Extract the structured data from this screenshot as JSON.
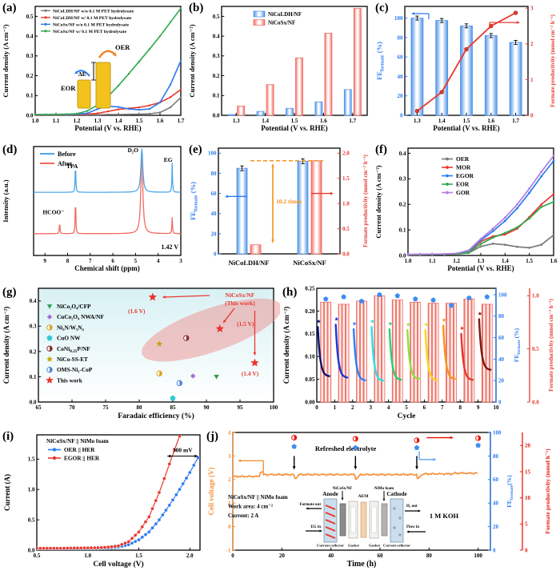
{
  "palette": {
    "blue": "#2b7bf0",
    "bar_blue": "#4f93e8",
    "bar_blue_light": "#bdd8f6",
    "red": "#e8382f",
    "bar_red": "#f26a60",
    "bar_red_light": "#fbd0cc",
    "green": "#2fa84f",
    "gray": "#7a7a7a",
    "purple": "#b07fe0",
    "orange": "#f5923e",
    "cyan": "#35c8d8",
    "black": "#000000"
  },
  "chart_data": [
    {
      "panel": "a",
      "label": "(a)",
      "type": "line",
      "xlabel": "Potential (V vs. RHE)",
      "ylabel": "Current density (A cm⁻²)",
      "xlim": [
        1.0,
        1.7
      ],
      "ylim": [
        0,
        0.55
      ],
      "xticks": [
        1.0,
        1.1,
        1.2,
        1.3,
        1.4,
        1.5,
        1.6,
        1.7
      ],
      "yticks": [
        0.0,
        0.1,
        0.2,
        0.3,
        0.4,
        0.5
      ],
      "x": [
        1.0,
        1.05,
        1.1,
        1.15,
        1.2,
        1.25,
        1.3,
        1.35,
        1.4,
        1.45,
        1.5,
        1.55,
        1.6,
        1.65,
        1.7
      ],
      "series": [
        {
          "name": "NiCoLDH/NF w/o 0.1 M PET hydrolysate",
          "color": "#7a7a7a",
          "values": [
            0.002,
            0.002,
            0.002,
            0.002,
            0.003,
            0.003,
            0.003,
            0.004,
            0.004,
            0.005,
            0.006,
            0.008,
            0.014,
            0.04,
            0.09
          ]
        },
        {
          "name": "NiCoLDH/NF w/ 0.1 M PET hydrolysate",
          "color": "#e8382f",
          "values": [
            0.003,
            0.003,
            0.003,
            0.004,
            0.005,
            0.006,
            0.01,
            0.02,
            0.03,
            0.035,
            0.04,
            0.05,
            0.065,
            0.092,
            0.13
          ]
        },
        {
          "name": "NiCoSx/NF w/o 0.1 M PET hydrolysate",
          "color": "#2b7bf0",
          "values": [
            0.004,
            0.004,
            0.004,
            0.005,
            0.006,
            0.01,
            0.032,
            0.046,
            0.042,
            0.032,
            0.028,
            0.032,
            0.065,
            0.155,
            0.275
          ]
        },
        {
          "name": "NiCoSx/NF w/ 0.1 M PET hydrolysate",
          "color": "#2fa84f",
          "values": [
            0.004,
            0.004,
            0.005,
            0.006,
            0.008,
            0.022,
            0.052,
            0.095,
            0.15,
            0.21,
            0.272,
            0.335,
            0.4,
            0.47,
            0.54
          ]
        }
      ],
      "inset": {
        "oer": "OER",
        "eor": "EOR",
        "delta": "ΔE"
      }
    },
    {
      "panel": "b",
      "label": "(b)",
      "type": "bar",
      "xlabel": "Potential (V vs. RHE)",
      "ylabel": "Current density (A cm⁻²)",
      "categories": [
        "1.3",
        "1.4",
        "1.5",
        "1.6",
        "1.7"
      ],
      "ylim": [
        0,
        0.55
      ],
      "yticks": [
        0.0,
        0.1,
        0.2,
        0.3,
        0.4,
        0.5
      ],
      "series": [
        {
          "name": "NiCoLDH/NF",
          "color": "#4f93e8",
          "values": [
            0.004,
            0.02,
            0.035,
            0.068,
            0.13
          ]
        },
        {
          "name": "NiCoSx/NF",
          "color": "#f26a60",
          "values": [
            0.047,
            0.155,
            0.29,
            0.415,
            0.54
          ]
        }
      ]
    },
    {
      "panel": "c",
      "label": "(c)",
      "type": "bar-line",
      "xlabel": "Potential (V vs. RHE)",
      "ylabel_left": "FE_{formate} (%)",
      "ylabel_right": "Formate productivity (mmol cm⁻² h⁻¹)",
      "categories": [
        "1.3",
        "1.4",
        "1.5",
        "1.6",
        "1.7"
      ],
      "fe_values": [
        100,
        97.5,
        92,
        82,
        75
      ],
      "fe_errors": [
        1.5,
        1,
        1.5,
        1,
        2
      ],
      "productivity": [
        0.12,
        0.65,
        1.85,
        2.5,
        2.87
      ],
      "ylim_left": [
        0,
        112
      ],
      "yticks_left": [
        0,
        20,
        40,
        60,
        80,
        100
      ],
      "ylim_right": [
        0,
        3.05
      ],
      "yticks_right": [
        0,
        1,
        2,
        3
      ]
    },
    {
      "panel": "d",
      "label": "(d)",
      "type": "nmr",
      "xlabel": "Chemical shift (ppm)",
      "ylabel": "Intensity (a.u.)",
      "xticks": [
        9,
        8,
        7,
        6,
        5,
        4,
        3
      ],
      "legend": [
        "Before",
        "After"
      ],
      "peak_labels": {
        "tpa": "TPA",
        "d2o": "D₂O",
        "eg": "EG",
        "formate": "HCOO⁻"
      },
      "annotation": "1.42 V",
      "before": {
        "base": 0.58,
        "peaks": [
          {
            "p": 7.65,
            "h": 0.27,
            "w": 0.016
          },
          {
            "p": 4.72,
            "h": 0.4,
            "w": 0.05
          },
          {
            "p": 3.38,
            "h": 0.27,
            "w": 0.016
          }
        ]
      },
      "after": {
        "base": 0.2,
        "peaks": [
          {
            "p": 8.35,
            "h": 0.11,
            "w": 0.016
          },
          {
            "p": 7.65,
            "h": 0.33,
            "w": 0.016
          },
          {
            "p": 4.72,
            "h": 0.76,
            "w": 0.05
          },
          {
            "p": 3.38,
            "h": 0.15,
            "w": 0.016
          }
        ]
      }
    },
    {
      "panel": "e",
      "label": "(e)",
      "type": "grouped-bar",
      "ylabel_left": "FE_{formate} (%)",
      "ylabel_right": "Formate productivity (mmol cm⁻² h⁻¹)",
      "categories": [
        "NiCoLDH/NF",
        "NiCoSx/NF"
      ],
      "fe_values": [
        85,
        92
      ],
      "fe_errors": [
        3,
        1.5
      ],
      "productivity": [
        0.18,
        1.85
      ],
      "ylim_left": [
        0,
        105
      ],
      "yticks_left": [
        0,
        20,
        40,
        60,
        80,
        100
      ],
      "ylim_right": [
        0,
        2.1
      ],
      "yticks_right": [
        0.0,
        0.5,
        1.0,
        1.5,
        2.0
      ],
      "dashed_level": 1.85,
      "annotation": "10.2 times"
    },
    {
      "panel": "f",
      "label": "(f)",
      "type": "line",
      "xlabel": "Potential (V vs. RHE)",
      "ylabel": "Current density (A cm⁻²)",
      "xlim": [
        1.0,
        1.6
      ],
      "ylim": [
        0,
        0.42
      ],
      "xticks": [
        1.0,
        1.1,
        1.2,
        1.3,
        1.4,
        1.5,
        1.6
      ],
      "yticks": [
        0.0,
        0.1,
        0.2,
        0.3,
        0.4
      ],
      "x": [
        1.0,
        1.05,
        1.1,
        1.15,
        1.2,
        1.25,
        1.3,
        1.35,
        1.4,
        1.45,
        1.5,
        1.55,
        1.6
      ],
      "series": [
        {
          "name": "OER",
          "color": "#7a7a7a",
          "values": [
            0.003,
            0.003,
            0.004,
            0.004,
            0.005,
            0.01,
            0.035,
            0.046,
            0.042,
            0.034,
            0.03,
            0.042,
            0.08
          ]
        },
        {
          "name": "MOR",
          "color": "#e8382f",
          "values": [
            0.003,
            0.004,
            0.004,
            0.005,
            0.006,
            0.015,
            0.055,
            0.075,
            0.082,
            0.105,
            0.15,
            0.2,
            0.24
          ]
        },
        {
          "name": "EGOR",
          "color": "#2b7bf0",
          "values": [
            0.004,
            0.004,
            0.005,
            0.005,
            0.007,
            0.018,
            0.06,
            0.095,
            0.135,
            0.185,
            0.245,
            0.31,
            0.37
          ]
        },
        {
          "name": "EOR",
          "color": "#2fa84f",
          "values": [
            0.003,
            0.004,
            0.004,
            0.005,
            0.006,
            0.012,
            0.045,
            0.07,
            0.088,
            0.11,
            0.145,
            0.19,
            0.21
          ]
        },
        {
          "name": "GOR",
          "color": "#b07fe0",
          "values": [
            0.004,
            0.005,
            0.005,
            0.006,
            0.008,
            0.02,
            0.065,
            0.105,
            0.148,
            0.2,
            0.262,
            0.328,
            0.39
          ]
        }
      ]
    },
    {
      "panel": "g",
      "label": "(g)",
      "type": "scatter",
      "xlabel": "Faradaic efficiency (%)",
      "ylabel": "Current density (A cm⁻²)",
      "xlim": [
        65,
        100
      ],
      "ylim": [
        0,
        0.45
      ],
      "xticks": [
        65,
        70,
        75,
        80,
        85,
        90,
        95,
        100
      ],
      "yticks": [
        0.0,
        0.1,
        0.2,
        0.3,
        0.4
      ],
      "points": [
        {
          "name": "NiCo₂O₄/CFP",
          "marker": "tri-down",
          "color": "#2e9e4f",
          "x": 91.5,
          "y": 0.1
        },
        {
          "name": "CuCo₂O₄ NWA/NF",
          "marker": "diamond",
          "color": "#a46fd6",
          "x": 88,
          "y": 0.103
        },
        {
          "name": "Ni₃N/W₅N₄",
          "marker": "circle-half",
          "color": "#d9a520",
          "x": 83,
          "y": 0.113
        },
        {
          "name": "CuO NW",
          "marker": "pent",
          "color": "#35c8d8",
          "x": 85,
          "y": 0.015
        },
        {
          "name": "CoNi_{0.25}P/NF",
          "marker": "circle-half",
          "color": "#8b3030",
          "x": 87,
          "y": 0.253
        },
        {
          "name": "NiCo-SS-ET",
          "marker": "star",
          "color": "#c2a514",
          "x": 83,
          "y": 0.23
        },
        {
          "name": "OMS-Ni₁-CoP",
          "marker": "circle-half",
          "color": "#4f86d8",
          "x": 86,
          "y": 0.075
        }
      ],
      "this_work": {
        "name": "This work",
        "marker": "star",
        "color": "#e8382f",
        "points": [
          [
            82,
            0.415
          ],
          [
            92,
            0.29
          ],
          [
            97.2,
            0.155
          ]
        ],
        "point_labels": [
          "(1.6 V)",
          "(1.5 V)",
          "(1.4 V)"
        ],
        "annotation": [
          "NiCoSx/NF",
          "(This work)"
        ]
      }
    },
    {
      "panel": "h",
      "label": "(h)",
      "type": "cycling",
      "xlabel": "Cycle",
      "ylabel_left": "Current density (A cm⁻²)",
      "ylabel_right_fe": "FE_{formate} (%)",
      "ylabel_right_prod": "Formate productivity (mmol cm⁻² h⁻¹)",
      "xlim": [
        0,
        10
      ],
      "xticks": [
        0,
        1,
        2,
        3,
        4,
        5,
        6,
        7,
        8,
        9,
        10
      ],
      "ylim_left": [
        0,
        0.25
      ],
      "yticks_left": [
        0.0,
        0.05,
        0.1,
        0.15,
        0.2,
        0.25
      ],
      "ylim_fe": [
        0,
        106
      ],
      "yticks_fe": [
        0,
        20,
        40,
        60,
        80,
        100
      ],
      "ylim_prod": [
        0,
        1.07
      ],
      "yticks_prod": [
        0.0,
        0.5,
        1.0
      ],
      "fe_markers": [
        96,
        98,
        94,
        100,
        99,
        96,
        95,
        90,
        97,
        98
      ],
      "prod_bars": [
        0.94,
        0.92,
        0.95,
        1.0,
        0.96,
        0.94,
        0.93,
        0.93,
        0.97,
        0.92
      ],
      "decay_start": [
        0.165,
        0.17,
        0.16,
        0.165,
        0.16,
        0.158,
        0.158,
        0.168,
        0.15,
        0.182
      ],
      "decay_end": [
        0.056,
        0.053,
        0.047,
        0.046,
        0.048,
        0.05,
        0.047,
        0.05,
        0.048,
        0.07
      ],
      "cycle_colors": [
        "#0b1470",
        "#1a35d8",
        "#2f7df6",
        "#2adfe2",
        "#2ecc71",
        "#8ee03c",
        "#f6d71c",
        "#f7941d",
        "#e8372a",
        "#7a1a10"
      ]
    },
    {
      "panel": "i",
      "label": "(i)",
      "type": "line",
      "xlabel": "Cell voltage (V)",
      "ylabel": "Current  (A)",
      "legend_title": "NiCoSx/NF || NiMo foam",
      "xlim": [
        0.5,
        2.1
      ],
      "ylim": [
        0,
        1.9
      ],
      "xticks": [
        0.5,
        1.0,
        1.5,
        2.0
      ],
      "yticks": [
        0.0,
        0.5,
        1.0,
        1.5
      ],
      "annotation": "300 mV",
      "series": [
        {
          "name": "OER || HER",
          "color": "#2b7bf0",
          "pts": [
            [
              0.5,
              0.02
            ],
            [
              0.7,
              0.02
            ],
            [
              0.9,
              0.025
            ],
            [
              1.1,
              0.03
            ],
            [
              1.2,
              0.035
            ],
            [
              1.3,
              0.05
            ],
            [
              1.4,
              0.09
            ],
            [
              1.5,
              0.17
            ],
            [
              1.6,
              0.3
            ],
            [
              1.7,
              0.5
            ],
            [
              1.8,
              0.74
            ],
            [
              1.9,
              1.0
            ],
            [
              2.0,
              1.28
            ],
            [
              2.08,
              1.52
            ]
          ]
        },
        {
          "name": "EGOR || HER",
          "color": "#e8382f",
          "pts": [
            [
              0.5,
              0.03
            ],
            [
              0.7,
              0.03
            ],
            [
              0.9,
              0.035
            ],
            [
              1.1,
              0.04
            ],
            [
              1.2,
              0.05
            ],
            [
              1.3,
              0.07
            ],
            [
              1.4,
              0.14
            ],
            [
              1.5,
              0.3
            ],
            [
              1.6,
              0.55
            ],
            [
              1.7,
              0.95
            ],
            [
              1.75,
              1.18
            ],
            [
              1.8,
              1.42
            ],
            [
              1.85,
              1.65
            ],
            [
              1.9,
              1.88
            ]
          ]
        }
      ]
    },
    {
      "panel": "j",
      "label": "(j)",
      "type": "stability",
      "xlabel": "Time (h)",
      "ylabel_left": "Cell voltage (V)",
      "ylabel_right_fe": "FE_{formate}(%)",
      "ylabel_right_prod": "Formate productivity (mmol h⁻¹)",
      "xlim": [
        0,
        105
      ],
      "xticks": [
        0,
        20,
        40,
        60,
        80,
        100
      ],
      "ylim_left": [
        -1,
        4
      ],
      "yticks_left": [
        -1,
        0,
        1,
        2,
        3,
        4
      ],
      "ylim_fe": [
        0,
        100
      ],
      "yticks_fe": [
        0,
        20,
        40,
        60,
        80,
        100
      ],
      "ylim_prod": [
        0,
        22.5
      ],
      "yticks_prod": [
        0,
        5,
        10,
        15,
        20
      ],
      "refresh_times": [
        25,
        50,
        75
      ],
      "refresh_label": "Refreshed electrolyte",
      "marker_times": [
        25,
        50,
        75,
        100
      ],
      "fe_markers": [
        88,
        87,
        87,
        89
      ],
      "prod_markers": [
        21.5,
        21.3,
        21.0,
        21.4
      ],
      "info_lines": [
        "NiCoSx/NF || NiMo foam",
        "Work area: 4 cm⁻²",
        "Current:  2 A"
      ],
      "koh": "1 M KOH",
      "schematic": {
        "top_labels": [
          "Anode",
          "NiCoSx/NF",
          "AEM",
          "NiMo foam",
          "Cathode"
        ],
        "bottom_labels": [
          "Current collector",
          "Gasket",
          "Gasket",
          "Current collector"
        ],
        "left_labels": [
          "Formate out",
          "EG in"
        ],
        "right_labels": [
          "H₂ out",
          "Flow in"
        ]
      }
    }
  ]
}
